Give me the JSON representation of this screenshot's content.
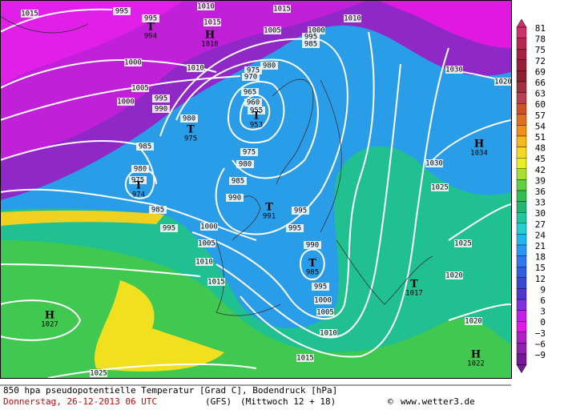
{
  "map": {
    "isobar_labels": [
      1015,
      995,
      995,
      1010,
      1015,
      1015,
      1010,
      1005,
      1000,
      995,
      985,
      1000,
      1010,
      980,
      975,
      970,
      965,
      960,
      955,
      1005,
      1000,
      995,
      990,
      980,
      1030,
      1020,
      985,
      975,
      980,
      985,
      980,
      975,
      990,
      985,
      995,
      1000,
      995,
      995,
      1005,
      990,
      1010,
      1015,
      995,
      1000,
      1005,
      1010,
      1015,
      1030,
      1025,
      1025,
      1020,
      1020,
      1025
    ],
    "pressure_centers": [
      {
        "kind": "T",
        "value": 994
      },
      {
        "kind": "H",
        "value": 1018
      },
      {
        "kind": "T",
        "value": 953
      },
      {
        "kind": "T",
        "value": 975
      },
      {
        "kind": "T",
        "value": 974
      },
      {
        "kind": "T",
        "value": 991
      },
      {
        "kind": "T",
        "value": 985
      },
      {
        "kind": "T",
        "value": 1017
      },
      {
        "kind": "H",
        "value": 1034
      },
      {
        "kind": "H",
        "value": 1027
      },
      {
        "kind": "H",
        "value": 1022
      }
    ],
    "colorbar": {
      "ticks": [
        81,
        78,
        75,
        72,
        69,
        66,
        63,
        60,
        57,
        54,
        51,
        48,
        45,
        42,
        39,
        36,
        33,
        30,
        27,
        24,
        21,
        18,
        15,
        12,
        9,
        6,
        3,
        0,
        {
          "value": -3,
          "label": "−3"
        },
        {
          "value": -6,
          "label": "−6"
        },
        {
          "value": -9,
          "label": "−9"
        }
      ],
      "colors": [
        "#d0306a",
        "#b82850",
        "#a82040",
        "#982038",
        "#8c2030",
        "#a03040",
        "#b84050",
        "#d05028",
        "#e07020",
        "#f09018",
        "#f8b818",
        "#f8d820",
        "#e8f020",
        "#a8e030",
        "#60d040",
        "#30c050",
        "#20b870",
        "#20c8a0",
        "#20d0d0",
        "#20b8f0",
        "#2898f8",
        "#3078f0",
        "#3060e0",
        "#3848d0",
        "#5038d0",
        "#8030e0",
        "#c020e8",
        "#e018e8",
        "#b020c8",
        "#9020b0",
        "#781898"
      ]
    },
    "caption": {
      "line1": "850 hpa pseudopotentielle Temperatur [Grad C], Bodendruck [hPa]",
      "date": "Donnerstag, 26-12-2013  06 UTC",
      "model": "(GFS)",
      "run": "(Mittwoch 12 + 18)",
      "copyright": "©",
      "site": "www.wetter3.de"
    }
  }
}
